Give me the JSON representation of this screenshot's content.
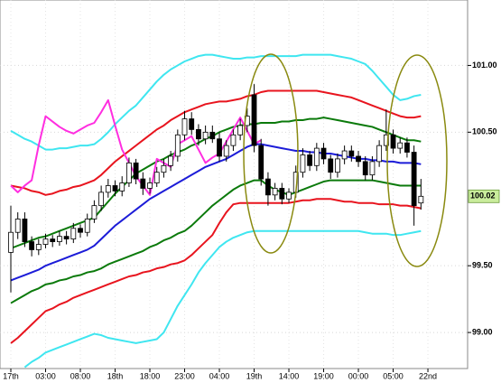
{
  "chart_data": {
    "type": "candlestick",
    "x": [
      0,
      1,
      2,
      3,
      4,
      5,
      6,
      7,
      8,
      9,
      10,
      11,
      12,
      13,
      14,
      15,
      16,
      17,
      18,
      19,
      20,
      21,
      22,
      23,
      24,
      25,
      26,
      27,
      28,
      29,
      30,
      31,
      32,
      33,
      34,
      35,
      36,
      37,
      38,
      39,
      40,
      41,
      42,
      43,
      44,
      45,
      46,
      47,
      48,
      49,
      50,
      51,
      52,
      53,
      54,
      55,
      56,
      57,
      58,
      59
    ],
    "open": [
      99.6,
      99.75,
      99.85,
      99.68,
      99.62,
      99.66,
      99.7,
      99.68,
      99.72,
      99.7,
      99.78,
      99.75,
      99.85,
      99.95,
      100.05,
      100.1,
      100.06,
      100.12,
      100.27,
      100.15,
      100.08,
      100.12,
      100.2,
      100.25,
      100.32,
      100.48,
      100.6,
      100.52,
      100.45,
      100.5,
      100.45,
      100.32,
      100.4,
      100.48,
      100.55,
      100.78,
      100.4,
      100.15,
      100.03,
      100.08,
      100.0,
      100.05,
      100.2,
      100.33,
      100.25,
      100.38,
      100.3,
      100.2,
      100.3,
      100.36,
      100.32,
      100.28,
      100.18,
      100.28,
      100.4,
      100.48,
      100.38,
      100.42,
      100.35,
      99.97
    ],
    "high": [
      99.95,
      99.9,
      99.9,
      99.72,
      99.7,
      99.74,
      99.73,
      99.76,
      99.76,
      99.82,
      99.81,
      99.89,
      99.99,
      100.1,
      100.15,
      100.14,
      100.17,
      100.31,
      100.3,
      100.2,
      100.16,
      100.24,
      100.3,
      100.36,
      100.52,
      100.66,
      100.65,
      100.56,
      100.55,
      100.55,
      100.5,
      100.44,
      100.52,
      100.6,
      100.68,
      100.86,
      100.45,
      100.2,
      100.12,
      100.12,
      100.08,
      100.25,
      100.38,
      100.36,
      100.42,
      100.42,
      100.33,
      100.34,
      100.4,
      100.4,
      100.36,
      100.32,
      100.32,
      100.44,
      100.67,
      100.52,
      100.46,
      100.46,
      100.4,
      100.15
    ],
    "low": [
      99.3,
      99.7,
      99.64,
      99.57,
      99.58,
      99.63,
      99.64,
      99.65,
      99.66,
      99.67,
      99.71,
      99.72,
      99.82,
      99.91,
      100.01,
      100.02,
      100.02,
      100.09,
      100.11,
      100.03,
      100.04,
      100.09,
      100.16,
      100.21,
      100.28,
      100.44,
      100.48,
      100.4,
      100.41,
      100.42,
      100.28,
      100.28,
      100.36,
      100.44,
      100.5,
      100.35,
      100.1,
      99.95,
      99.99,
      99.96,
      99.97,
      100.01,
      100.16,
      100.21,
      100.21,
      100.26,
      100.15,
      100.16,
      100.26,
      100.28,
      100.24,
      100.14,
      100.14,
      100.24,
      100.36,
      100.34,
      100.34,
      100.31,
      99.8,
      99.92
    ],
    "close": [
      99.75,
      99.85,
      99.68,
      99.62,
      99.66,
      99.7,
      99.68,
      99.72,
      99.7,
      99.78,
      99.75,
      99.85,
      99.95,
      100.05,
      100.1,
      100.06,
      100.12,
      100.27,
      100.15,
      100.08,
      100.12,
      100.2,
      100.25,
      100.32,
      100.48,
      100.6,
      100.52,
      100.45,
      100.5,
      100.45,
      100.32,
      100.4,
      100.48,
      100.55,
      100.62,
      100.4,
      100.15,
      100.03,
      100.08,
      100.0,
      100.05,
      100.2,
      100.33,
      100.25,
      100.38,
      100.3,
      100.2,
      100.3,
      100.36,
      100.32,
      100.28,
      100.18,
      100.28,
      100.4,
      100.48,
      100.38,
      100.42,
      100.35,
      99.95,
      100.02
    ],
    "up_color": "#ffffff",
    "down_color": "#000000",
    "series": [
      {
        "color": "#3fe6f0",
        "values": [
          100.51,
          100.48,
          100.45,
          100.43,
          100.4,
          100.37,
          100.37,
          100.38,
          100.38,
          100.39,
          100.4,
          100.4,
          100.41,
          100.45,
          100.5,
          100.56,
          100.61,
          100.66,
          100.7,
          100.76,
          100.82,
          100.88,
          100.93,
          100.97,
          101.0,
          101.03,
          101.05,
          101.07,
          101.08,
          101.08,
          101.07,
          101.06,
          101.05,
          101.05,
          101.06,
          101.06,
          101.07,
          101.07,
          101.07,
          101.07,
          101.07,
          101.07,
          101.08,
          101.08,
          101.08,
          101.08,
          101.08,
          101.07,
          101.06,
          101.05,
          101.03,
          101.01,
          100.96,
          100.9,
          100.84,
          100.78,
          100.74,
          100.75,
          100.77,
          100.78
        ]
      },
      {
        "color": "#3fe6f0",
        "values": [
          null,
          null,
          98.74,
          98.78,
          98.81,
          98.85,
          98.87,
          98.89,
          98.91,
          98.93,
          98.95,
          98.97,
          98.99,
          98.98,
          98.96,
          98.95,
          98.94,
          98.93,
          98.92,
          98.93,
          98.94,
          98.95,
          99.0,
          99.1,
          99.2,
          99.28,
          99.36,
          99.45,
          99.52,
          99.58,
          99.64,
          99.68,
          99.71,
          99.73,
          99.75,
          99.76,
          99.76,
          99.76,
          99.76,
          99.76,
          99.76,
          99.76,
          99.76,
          99.76,
          99.76,
          99.76,
          99.76,
          99.76,
          99.76,
          99.76,
          99.76,
          99.75,
          99.74,
          99.74,
          99.74,
          99.73,
          99.73,
          99.74,
          99.75,
          99.76
        ]
      },
      {
        "color": "#e8141e",
        "values": [
          100.1,
          100.09,
          100.08,
          100.06,
          100.05,
          100.03,
          100.04,
          100.06,
          100.07,
          100.09,
          100.1,
          100.12,
          100.14,
          100.18,
          100.23,
          100.28,
          100.32,
          100.36,
          100.4,
          100.44,
          100.48,
          100.52,
          100.55,
          100.59,
          100.62,
          100.65,
          100.67,
          100.69,
          100.71,
          100.72,
          100.73,
          100.73,
          100.74,
          100.75,
          100.77,
          100.78,
          100.8,
          100.81,
          100.81,
          100.81,
          100.81,
          100.81,
          100.81,
          100.81,
          100.81,
          100.8,
          100.79,
          100.78,
          100.77,
          100.76,
          100.74,
          100.72,
          100.7,
          100.68,
          100.66,
          100.64,
          100.62,
          100.61,
          100.61,
          100.62
        ]
      },
      {
        "color": "#e8141e",
        "values": [
          98.92,
          98.96,
          99.01,
          99.06,
          99.11,
          99.16,
          99.18,
          99.21,
          99.23,
          99.26,
          99.28,
          99.3,
          99.32,
          99.34,
          99.36,
          99.38,
          99.4,
          99.42,
          99.43,
          99.45,
          99.46,
          99.48,
          99.49,
          99.51,
          99.52,
          99.54,
          99.58,
          99.63,
          99.68,
          99.73,
          99.82,
          99.9,
          99.96,
          99.97,
          99.97,
          99.97,
          99.97,
          99.97,
          99.97,
          99.97,
          99.97,
          99.98,
          99.99,
          99.99,
          100.0,
          100.0,
          100.0,
          99.99,
          99.98,
          99.98,
          99.97,
          99.97,
          99.97,
          99.96,
          99.96,
          99.96,
          99.95,
          99.95,
          99.94,
          99.93
        ]
      },
      {
        "color": "#0b7a0b",
        "values": [
          99.63,
          99.65,
          99.67,
          99.69,
          99.71,
          99.72,
          99.74,
          99.76,
          99.78,
          99.8,
          99.82,
          99.84,
          99.86,
          99.92,
          99.98,
          100.04,
          100.09,
          100.14,
          100.19,
          100.22,
          100.25,
          100.28,
          100.3,
          100.33,
          100.35,
          100.37,
          100.4,
          100.42,
          100.45,
          100.47,
          100.5,
          100.52,
          100.54,
          100.55,
          100.56,
          100.56,
          100.57,
          100.57,
          100.57,
          100.58,
          100.58,
          100.59,
          100.59,
          100.6,
          100.6,
          100.61,
          100.6,
          100.59,
          100.58,
          100.57,
          100.56,
          100.55,
          100.54,
          100.52,
          100.5,
          100.48,
          100.46,
          100.44,
          100.44,
          100.43
        ]
      },
      {
        "color": "#0b7a0b",
        "values": [
          99.22,
          99.25,
          99.28,
          99.31,
          99.33,
          99.36,
          99.37,
          99.39,
          99.4,
          99.42,
          99.43,
          99.45,
          99.46,
          99.48,
          99.51,
          99.53,
          99.55,
          99.57,
          99.59,
          99.61,
          99.64,
          99.66,
          99.69,
          99.71,
          99.74,
          99.76,
          99.8,
          99.85,
          99.9,
          99.95,
          99.99,
          100.03,
          100.07,
          100.1,
          100.12,
          100.14,
          100.14,
          100.1,
          100.07,
          100.05,
          100.03,
          100.05,
          100.07,
          100.09,
          100.11,
          100.13,
          100.14,
          100.14,
          100.14,
          100.14,
          100.14,
          100.14,
          100.14,
          100.13,
          100.12,
          100.11,
          100.1,
          100.1,
          100.1,
          100.1
        ]
      },
      {
        "color": "#1c1cd8",
        "values": [
          99.39,
          99.41,
          99.43,
          99.45,
          99.47,
          99.5,
          99.52,
          99.54,
          99.56,
          99.58,
          99.6,
          99.62,
          99.65,
          99.7,
          99.75,
          99.8,
          99.84,
          99.88,
          99.92,
          99.96,
          100.0,
          100.03,
          100.06,
          100.09,
          100.12,
          100.15,
          100.18,
          100.21,
          100.24,
          100.26,
          100.28,
          100.3,
          100.33,
          100.36,
          100.39,
          100.41,
          100.41,
          100.4,
          100.39,
          100.38,
          100.37,
          100.36,
          100.36,
          100.35,
          100.35,
          100.34,
          100.34,
          100.33,
          100.32,
          100.31,
          100.3,
          100.3,
          100.29,
          100.29,
          100.28,
          100.28,
          100.27,
          100.27,
          100.27,
          100.26
        ]
      },
      {
        "color": "#ff2ee0",
        "values": [
          100.1,
          100.05,
          100.1,
          100.14,
          100.4,
          100.62,
          100.58,
          100.54,
          100.51,
          100.49,
          100.52,
          100.55,
          100.57,
          100.65,
          100.74,
          100.55,
          100.37,
          100.27,
          100.17,
          100.1,
          100.03,
          100.3,
          100.27,
          100.24,
          100.41,
          100.44,
          100.47,
          100.37,
          100.27,
          100.31,
          100.34,
          100.43,
          100.52,
          100.61,
          100.51,
          100.41,
          100.44,
          null,
          null,
          null,
          null,
          null,
          null,
          null,
          null,
          null,
          null,
          null,
          null,
          null,
          null,
          null,
          null,
          null,
          null,
          null,
          null,
          null,
          null,
          null
        ]
      }
    ],
    "xlim": [
      -1.56,
      65.71
    ],
    "ylim": [
      98.73,
      101.49
    ],
    "xticks": [
      {
        "value": 0,
        "label": "17th"
      },
      {
        "value": 5,
        "label": "03:00"
      },
      {
        "value": 10,
        "label": "08:00"
      },
      {
        "value": 15,
        "label": "18th"
      },
      {
        "value": 20,
        "label": "18:00"
      },
      {
        "value": 25,
        "label": "23:00"
      },
      {
        "value": 30,
        "label": "04:00"
      },
      {
        "value": 35,
        "label": "19th"
      },
      {
        "value": 40,
        "label": "14:00"
      },
      {
        "value": 45,
        "label": "19:00"
      },
      {
        "value": 50,
        "label": "00:00"
      },
      {
        "value": 55,
        "label": "05:00"
      },
      {
        "value": 60,
        "label": "22nd"
      }
    ],
    "yticks": [
      {
        "value": 99,
        "label": "99.00"
      },
      {
        "value": 99.5,
        "label": "99.50"
      },
      {
        "value": 100.5,
        "label": "100.50"
      },
      {
        "value": 101,
        "label": "101.00"
      }
    ],
    "current_price": 100.02,
    "grid": true
  }
}
